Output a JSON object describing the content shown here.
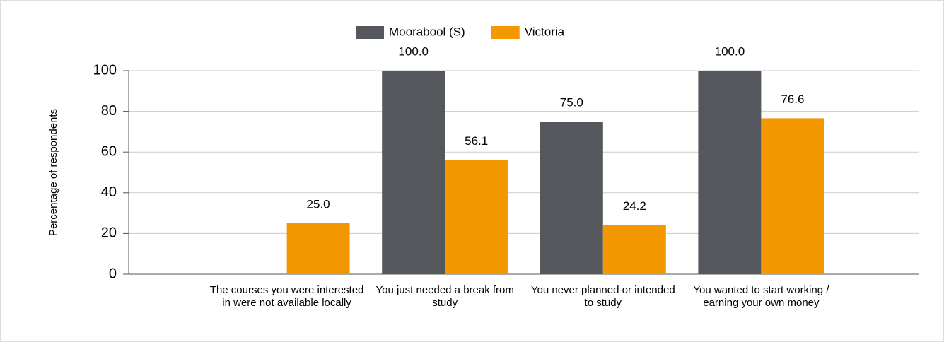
{
  "chart_data": {
    "type": "bar",
    "y_label": "Percentage of respondents",
    "categories": [
      "The courses you were interested in were not available locally",
      "You just needed a break from study",
      "You never planned or intended to study",
      "You wanted to start working / earning your own money"
    ],
    "series": [
      {
        "name": "Moorabool (S)",
        "color": "#54575b",
        "values": [
          null,
          100,
          75,
          100
        ],
        "value_labels": [
          null,
          "100.0",
          "75.0",
          "100.0"
        ]
      },
      {
        "name": "Victoria",
        "color": "#f39800",
        "values": [
          25,
          56.1,
          24.2,
          76.6
        ],
        "value_labels": [
          "25.0",
          "56.1",
          "24.2",
          "76.6"
        ]
      }
    ],
    "ylim": [
      0,
      100
    ],
    "yticks": [
      0,
      20,
      40,
      60,
      80,
      100
    ],
    "grid": true,
    "legend": "top"
  }
}
